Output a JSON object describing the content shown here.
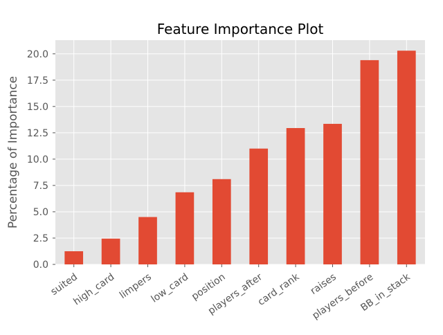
{
  "chart_data": {
    "type": "bar",
    "title": "Feature Importance Plot",
    "xlabel": "",
    "ylabel": "Percentage of Importance",
    "categories": [
      "suited",
      "high_card",
      "limpers",
      "low_card",
      "position",
      "players_after",
      "card_rank",
      "raises",
      "players_before",
      "BB_in_stack"
    ],
    "values": [
      1.25,
      2.45,
      4.5,
      6.85,
      8.1,
      11.0,
      12.95,
      13.35,
      19.4,
      20.3
    ],
    "ylim": [
      0,
      21.3
    ],
    "yticks": [
      0.0,
      2.5,
      5.0,
      7.5,
      10.0,
      12.5,
      15.0,
      17.5,
      20.0
    ],
    "ytick_labels": [
      "0.0",
      "2.5",
      "5.0",
      "7.5",
      "10.0",
      "12.5",
      "15.0",
      "17.5",
      "20.0"
    ],
    "grid": true,
    "colors": {
      "bar": "#e24a33",
      "background": "#e5e5e5",
      "grid": "#ffffff",
      "text": "#555555",
      "title": "#000000"
    }
  }
}
